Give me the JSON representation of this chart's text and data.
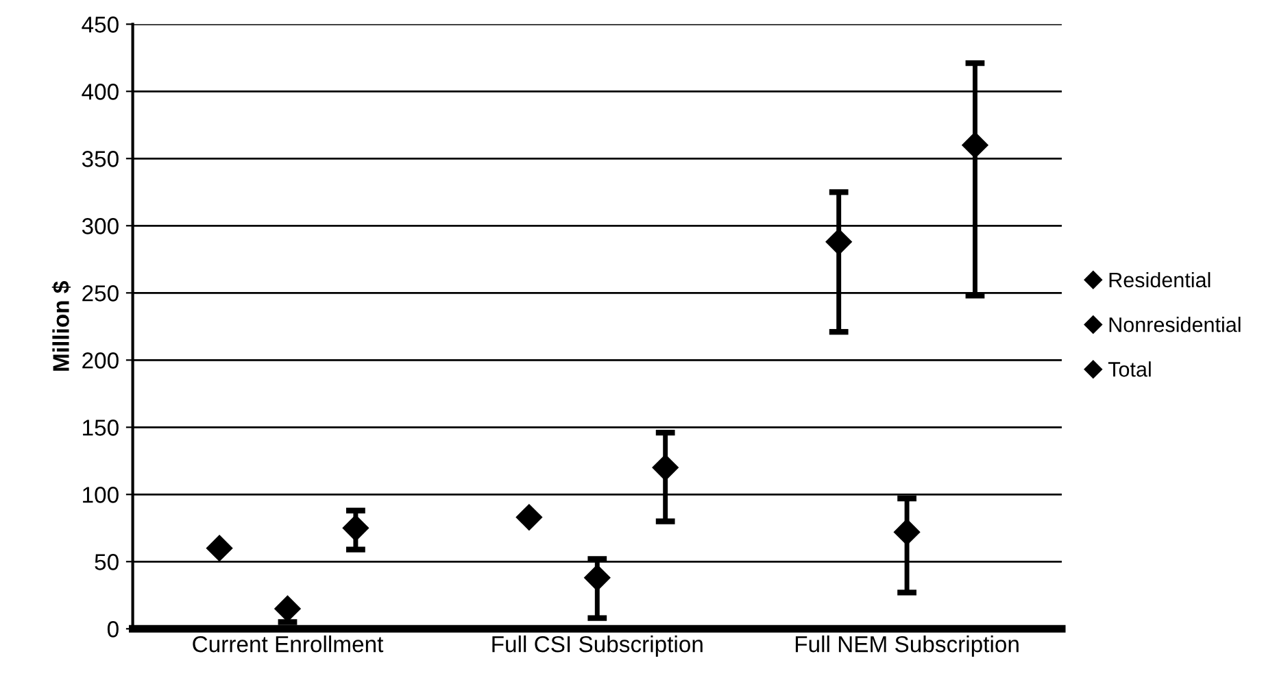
{
  "chart_data": {
    "type": "scatter",
    "ylabel": "Million $",
    "categories": [
      "Current Enrollment",
      "Full CSI Subscription",
      "Full NEM Subscription"
    ],
    "series": [
      {
        "name": "Residential",
        "color": "#000000",
        "marker": "diamond",
        "values": [
          60,
          83,
          288
        ],
        "errors": [
          null,
          null,
          [
            221,
            325
          ]
        ]
      },
      {
        "name": "Nonresidential",
        "color": "#000000",
        "marker": "diamond",
        "values": [
          15,
          38,
          72
        ],
        "errors": [
          [
            5,
            15
          ],
          [
            8,
            52
          ],
          [
            27,
            97
          ]
        ]
      },
      {
        "name": "Total",
        "color": "#000000",
        "marker": "diamond",
        "values": [
          75,
          120,
          360
        ],
        "errors": [
          [
            59,
            88
          ],
          [
            80,
            146
          ],
          [
            248,
            421
          ]
        ]
      }
    ],
    "ylim": [
      0,
      450
    ],
    "yticks": [
      0,
      50,
      100,
      150,
      200,
      250,
      300,
      350,
      400,
      450
    ],
    "grid": "y",
    "legend": "right"
  }
}
